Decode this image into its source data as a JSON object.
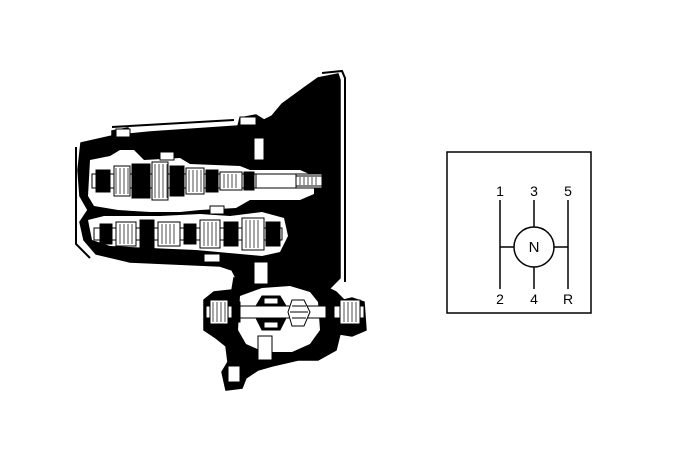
{
  "transmission": {
    "icon": "transmission-cutaway-icon"
  },
  "shift_pattern": {
    "top_labels": [
      "1",
      "3",
      "5"
    ],
    "bottom_labels": [
      "2",
      "4",
      "R"
    ],
    "neutral_label": "N"
  },
  "colors": {
    "ink": "#000000",
    "paper": "#ffffff"
  }
}
